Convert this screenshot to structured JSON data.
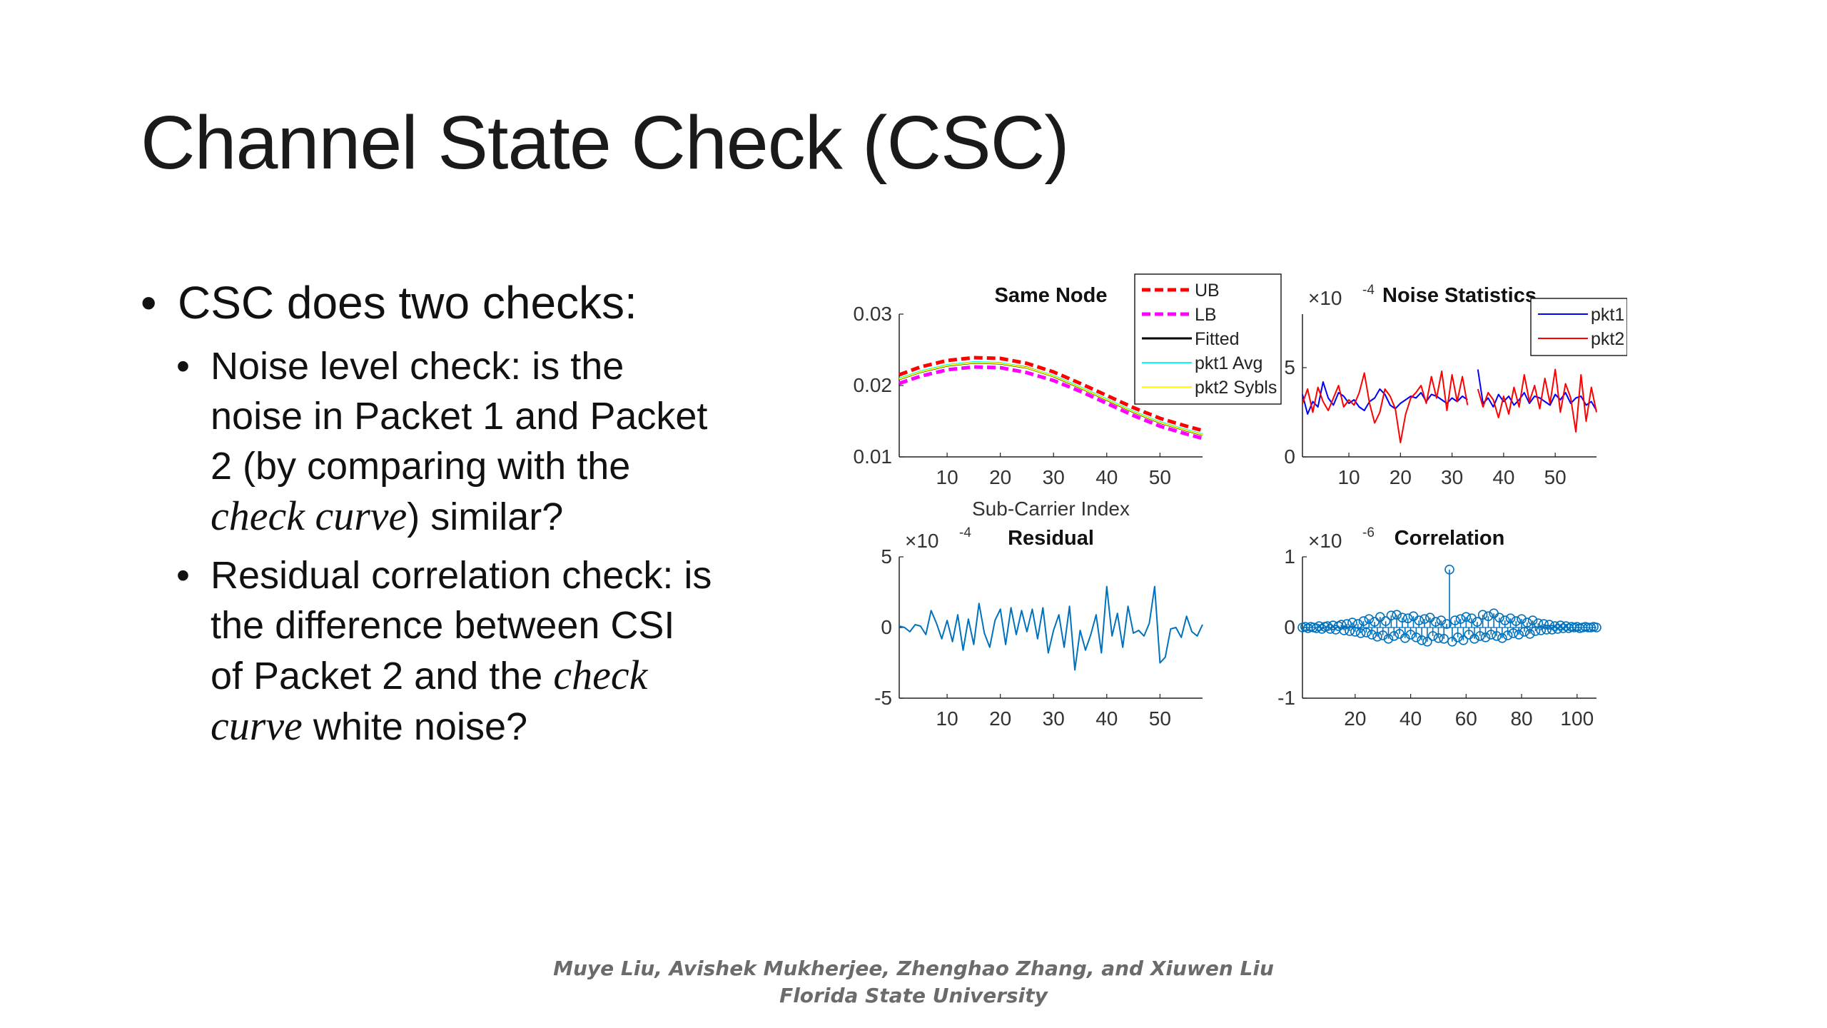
{
  "slide": {
    "title": "Channel State Check (CSC)",
    "bullets": {
      "main": "CSC does two checks:",
      "sub1": {
        "line1": "Noise level check: is the",
        "line2": "noise in Packet 1 and Packet",
        "line3": "2 (by comparing with the",
        "italic": "check curve",
        "line4_rest": ") similar?"
      },
      "sub2": {
        "line1": "Residual correlation check: is",
        "line2": "the difference between CSI",
        "line3_pre": "of Packet 2 and the ",
        "italic_a": "check",
        "italic_b": "curve",
        "line4_rest": " white noise?"
      }
    },
    "footer": {
      "line1": "Muye Liu, Avishek Mukherjee, Zhenghao Zhang, and Xiuwen Liu",
      "line2": "Florida State University"
    }
  },
  "colors": {
    "ub": "#ff0000",
    "lb": "#ff00ff",
    "fitted": "#000000",
    "pkt1_avg": "#00ffff",
    "pkt2_sybls": "#ffff00",
    "pkt1": "#0000ff",
    "pkt2": "#ff0000",
    "residual": "#0072bd",
    "correlation": "#0072bd"
  },
  "chart_data": [
    {
      "type": "line",
      "title": "Same Node",
      "xlabel": "Sub-Carrier Index",
      "ylabel": "",
      "xlim": [
        1,
        58
      ],
      "ylim": [
        0.01,
        0.03
      ],
      "xticks": [
        "10",
        "20",
        "30",
        "40",
        "50"
      ],
      "yticks": [
        "0.01",
        "0.02",
        "0.03"
      ],
      "legend": {
        "placement": "top-right",
        "entries": [
          "UB",
          "LB",
          "Fitted",
          "pkt1 Avg",
          "pkt2 Sybls"
        ]
      },
      "series": [
        {
          "name": "UB",
          "x": [
            1,
            5,
            10,
            15,
            20,
            25,
            30,
            35,
            40,
            45,
            50,
            55,
            58
          ],
          "values": [
            0.0215,
            0.0226,
            0.0235,
            0.0239,
            0.0238,
            0.0231,
            0.0219,
            0.0203,
            0.0186,
            0.0169,
            0.0154,
            0.0143,
            0.0137
          ]
        },
        {
          "name": "LB",
          "x": [
            1,
            5,
            10,
            15,
            20,
            25,
            30,
            35,
            40,
            45,
            50,
            55,
            58
          ],
          "values": [
            0.0203,
            0.0213,
            0.0222,
            0.0226,
            0.0225,
            0.0218,
            0.0207,
            0.0192,
            0.0175,
            0.0158,
            0.0143,
            0.0132,
            0.0126
          ]
        },
        {
          "name": "Fitted",
          "x": [
            1,
            5,
            10,
            15,
            20,
            25,
            30,
            35,
            40,
            45,
            50,
            55,
            58
          ],
          "values": [
            0.0209,
            0.0219,
            0.0228,
            0.0232,
            0.0231,
            0.0225,
            0.0213,
            0.0197,
            0.018,
            0.0163,
            0.0148,
            0.0137,
            0.0131
          ]
        },
        {
          "name": "pkt1 Avg",
          "x": [
            1,
            5,
            10,
            15,
            20,
            25,
            30,
            35,
            40,
            45,
            50,
            55,
            58
          ],
          "values": [
            0.021,
            0.022,
            0.0229,
            0.0233,
            0.0232,
            0.0225,
            0.0214,
            0.0198,
            0.0181,
            0.0164,
            0.0149,
            0.0138,
            0.0132
          ]
        },
        {
          "name": "pkt2 Sybls",
          "x": [
            1,
            5,
            10,
            15,
            20,
            25,
            30,
            35,
            40,
            45,
            50,
            55,
            58
          ],
          "values": [
            0.0209,
            0.0219,
            0.0228,
            0.0232,
            0.0231,
            0.0225,
            0.0213,
            0.0197,
            0.018,
            0.0163,
            0.0148,
            0.0137,
            0.0131
          ]
        }
      ]
    },
    {
      "type": "line",
      "title": "Noise Statistics",
      "exponent_label": "×10",
      "exponent": "-4",
      "xlim": [
        1,
        58
      ],
      "ylim": [
        0,
        8
      ],
      "xticks": [
        "10",
        "20",
        "30",
        "40",
        "50"
      ],
      "yticks": [
        "0",
        "5"
      ],
      "legend": {
        "placement": "top-right",
        "entries": [
          "pkt1",
          "pkt2"
        ]
      },
      "series": [
        {
          "name": "pkt1",
          "x": [
            1,
            2,
            3,
            4,
            5,
            6,
            7,
            8,
            9,
            10,
            11,
            12,
            13,
            14,
            15,
            16,
            17,
            18,
            19,
            20,
            21,
            22,
            23,
            24,
            25,
            26,
            27,
            28,
            29,
            30,
            31,
            32,
            33,
            34,
            35,
            36,
            37,
            38,
            39,
            40,
            41,
            42,
            43,
            44,
            45,
            46,
            47,
            48,
            49,
            50,
            51,
            52,
            53,
            54,
            55,
            56,
            57,
            58
          ],
          "values": [
            3.5,
            2.4,
            3.1,
            2.8,
            4.2,
            3.3,
            2.9,
            3.6,
            3.4,
            3.0,
            3.2,
            2.8,
            2.6,
            3.1,
            3.3,
            3.8,
            3.5,
            2.9,
            2.7,
            3.0,
            3.2,
            3.4,
            3.3,
            3.6,
            3.1,
            3.5,
            3.4,
            3.2,
            3.0,
            3.3,
            3.1,
            3.4,
            3.2,
            null,
            4.9,
            3.0,
            3.3,
            2.8,
            3.5,
            3.1,
            3.4,
            2.9,
            3.2,
            3.6,
            3.0,
            3.4,
            3.3,
            3.1,
            2.9,
            3.5,
            3.2,
            3.6,
            3.0,
            3.3,
            3.4,
            2.9,
            3.1,
            2.6
          ]
        },
        {
          "name": "pkt2",
          "x": [
            1,
            2,
            3,
            4,
            5,
            6,
            7,
            8,
            9,
            10,
            11,
            12,
            13,
            14,
            15,
            16,
            17,
            18,
            19,
            20,
            21,
            22,
            23,
            24,
            25,
            26,
            27,
            28,
            29,
            30,
            31,
            32,
            33,
            34,
            35,
            36,
            37,
            38,
            39,
            40,
            41,
            42,
            43,
            44,
            45,
            46,
            47,
            48,
            49,
            50,
            51,
            52,
            53,
            54,
            55,
            56,
            57,
            58
          ],
          "values": [
            3.0,
            3.8,
            2.5,
            3.9,
            3.1,
            2.6,
            3.3,
            4.0,
            2.8,
            3.2,
            2.9,
            3.6,
            4.7,
            3.0,
            1.9,
            2.5,
            3.8,
            3.4,
            2.7,
            0.8,
            2.4,
            3.3,
            3.6,
            4.0,
            3.0,
            4.5,
            3.3,
            4.8,
            2.6,
            4.6,
            3.1,
            4.5,
            2.9,
            null,
            3.8,
            2.8,
            3.6,
            3.2,
            2.2,
            3.4,
            2.4,
            3.9,
            2.8,
            4.6,
            3.1,
            4.0,
            2.7,
            4.4,
            3.0,
            4.9,
            2.5,
            4.1,
            3.3,
            1.4,
            4.6,
            2.0,
            3.9,
            2.5
          ]
        }
      ]
    },
    {
      "type": "line",
      "title": "Residual",
      "exponent_label": "×10",
      "exponent": "-4",
      "xlim": [
        1,
        58
      ],
      "ylim": [
        -5,
        5
      ],
      "xticks": [
        "10",
        "20",
        "30",
        "40",
        "50"
      ],
      "yticks": [
        "-5",
        "0",
        "5"
      ],
      "series": [
        {
          "name": "",
          "x": [
            1,
            2,
            3,
            4,
            5,
            6,
            7,
            8,
            9,
            10,
            11,
            12,
            13,
            14,
            15,
            16,
            17,
            18,
            19,
            20,
            21,
            22,
            23,
            24,
            25,
            26,
            27,
            28,
            29,
            30,
            31,
            32,
            33,
            34,
            35,
            36,
            37,
            38,
            39,
            40,
            41,
            42,
            43,
            44,
            45,
            46,
            47,
            48,
            49,
            50,
            51,
            52,
            53,
            54,
            55,
            56,
            57,
            58
          ],
          "values": [
            0.1,
            0.0,
            -0.3,
            0.2,
            0.1,
            -0.5,
            1.2,
            0.3,
            -0.8,
            0.5,
            -1.0,
            0.9,
            -1.6,
            0.6,
            -1.2,
            1.7,
            -0.4,
            -1.4,
            0.5,
            1.3,
            -1.2,
            1.4,
            -0.5,
            1.2,
            -0.3,
            1.3,
            -0.8,
            1.4,
            -1.8,
            -0.2,
            0.9,
            -1.4,
            1.5,
            -3.0,
            -0.2,
            -1.6,
            -0.5,
            0.9,
            -1.8,
            2.9,
            -0.6,
            1.0,
            -1.4,
            1.5,
            -0.4,
            -0.2,
            -0.6,
            0.3,
            2.9,
            -2.5,
            -2.1,
            -0.1,
            0.0,
            -0.7,
            0.8,
            -0.3,
            -0.6,
            0.2
          ]
        }
      ]
    },
    {
      "type": "scatter",
      "title": "Correlation",
      "exponent_label": "×10",
      "exponent": "-6",
      "xlim": [
        1,
        107
      ],
      "ylim": [
        -1,
        1
      ],
      "xticks": [
        "20",
        "40",
        "60",
        "80",
        "100"
      ],
      "yticks": [
        "-1",
        "0",
        "1"
      ],
      "series": [
        {
          "name": "",
          "x": [
            1,
            2,
            3,
            4,
            5,
            6,
            7,
            8,
            9,
            10,
            11,
            12,
            13,
            14,
            15,
            16,
            17,
            18,
            19,
            20,
            21,
            22,
            23,
            24,
            25,
            26,
            27,
            28,
            29,
            30,
            31,
            32,
            33,
            34,
            35,
            36,
            37,
            38,
            39,
            40,
            41,
            42,
            43,
            44,
            45,
            46,
            47,
            48,
            49,
            50,
            51,
            52,
            53,
            54,
            55,
            56,
            57,
            58,
            59,
            60,
            61,
            62,
            63,
            64,
            65,
            66,
            67,
            68,
            69,
            70,
            71,
            72,
            73,
            74,
            75,
            76,
            77,
            78,
            79,
            80,
            81,
            82,
            83,
            84,
            85,
            86,
            87,
            88,
            89,
            90,
            91,
            92,
            93,
            94,
            95,
            96,
            97,
            98,
            99,
            100,
            101,
            102,
            103,
            104,
            105,
            106,
            107
          ],
          "values": [
            0.0,
            0.01,
            -0.01,
            0.01,
            0.0,
            -0.01,
            0.02,
            -0.02,
            0.01,
            0.02,
            -0.02,
            0.03,
            -0.03,
            0.02,
            0.04,
            -0.04,
            0.05,
            -0.05,
            0.07,
            -0.06,
            0.05,
            -0.08,
            0.09,
            -0.07,
            0.12,
            -0.1,
            0.08,
            -0.13,
            0.15,
            -0.11,
            0.09,
            -0.16,
            0.17,
            -0.12,
            0.18,
            -0.09,
            0.14,
            -0.15,
            0.13,
            -0.1,
            0.16,
            -0.14,
            0.1,
            -0.18,
            0.12,
            -0.2,
            0.14,
            -0.12,
            0.08,
            -0.15,
            0.1,
            -0.16,
            0.05,
            0.82,
            -0.2,
            0.1,
            -0.14,
            0.12,
            -0.18,
            0.15,
            -0.1,
            0.13,
            -0.16,
            0.08,
            -0.12,
            0.18,
            -0.14,
            0.16,
            -0.1,
            0.2,
            -0.12,
            0.14,
            -0.15,
            0.1,
            -0.11,
            0.13,
            -0.08,
            0.09,
            -0.1,
            0.12,
            -0.06,
            0.07,
            -0.09,
            0.1,
            -0.05,
            0.06,
            -0.04,
            0.05,
            -0.03,
            0.04,
            -0.03,
            0.02,
            -0.02,
            0.03,
            -0.01,
            0.02,
            -0.01,
            0.01,
            0.0,
            0.01,
            -0.01,
            0.0,
            0.01,
            0.0,
            0.0,
            0.01,
            0.0
          ]
        }
      ]
    }
  ]
}
